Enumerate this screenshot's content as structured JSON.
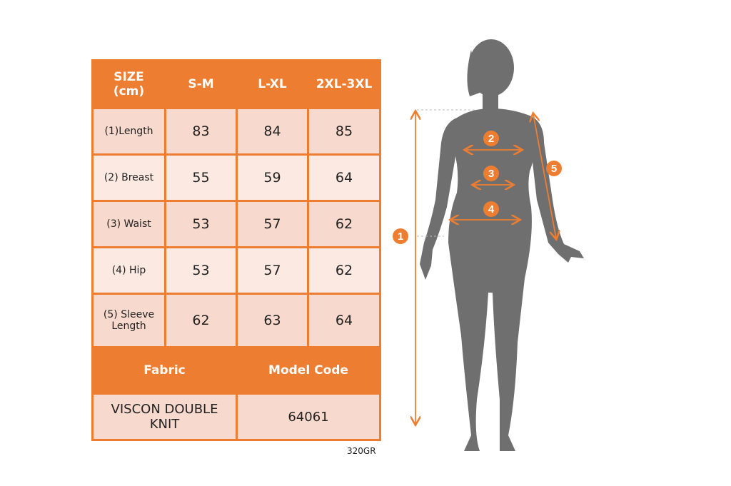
{
  "table": {
    "header": [
      "SIZE",
      "(cm)",
      "S-M",
      "L-XL",
      "2XL-3XL"
    ],
    "rows": [
      {
        "label": "(1)Length",
        "values": [
          "83",
          "84",
          "85"
        ]
      },
      {
        "label": "(2) Breast",
        "values": [
          "55",
          "59",
          "64"
        ]
      },
      {
        "label": "(3) Waist",
        "values": [
          "53",
          "57",
          "62"
        ]
      },
      {
        "label": "(4) Hip",
        "values": [
          "53",
          "57",
          "62"
        ]
      },
      {
        "label_line1": "(5) Sleeve",
        "label_line2": "Length",
        "values": [
          "62",
          "63",
          "64"
        ]
      }
    ],
    "fabric_header": "Fabric",
    "model_code_header": "Model Code",
    "fabric_line1": "VISCON DOUBLE",
    "fabric_line2": "KNIT",
    "model_code": "64061"
  },
  "footnote": "320GR",
  "figure": {
    "markers": [
      "1",
      "2",
      "3",
      "4",
      "5"
    ],
    "accent_color": "#ed7d31",
    "silhouette_color": "#6f6f6f"
  }
}
